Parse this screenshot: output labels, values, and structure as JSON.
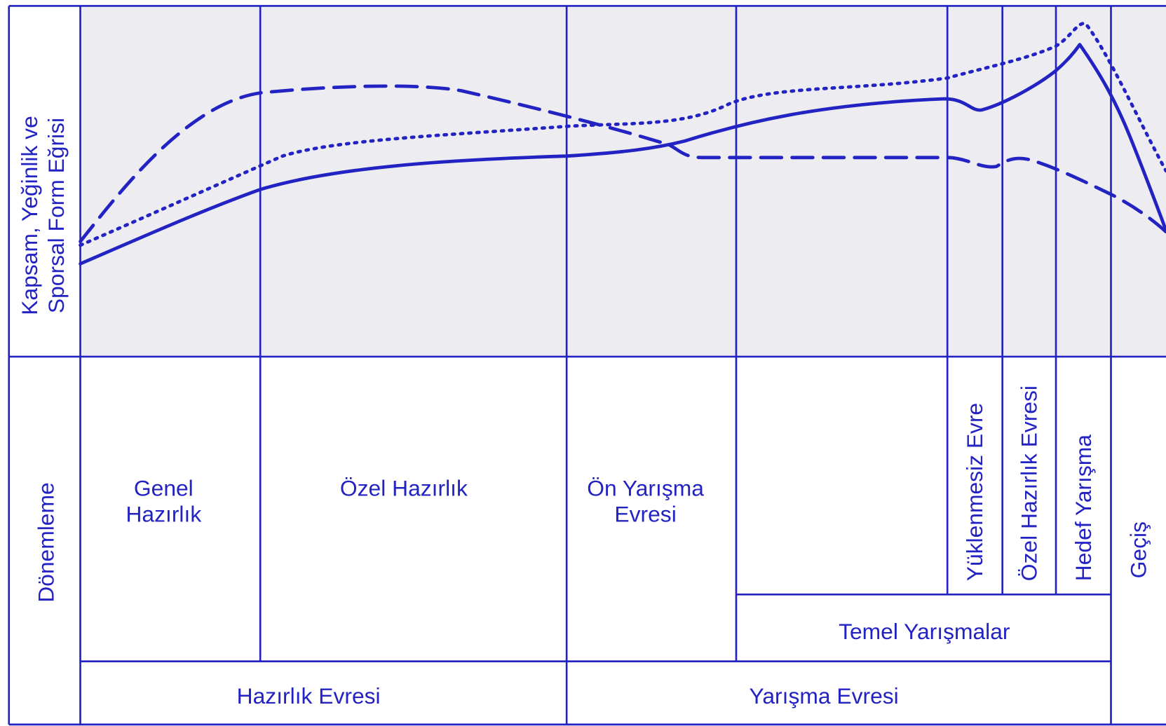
{
  "y_axis_label": [
    "Kapsam, Yeğinlik ve",
    "Sporsal Form Eğrisi"
  ],
  "periodization_label": "Dönemleme",
  "sub_periods": {
    "general_preparation": [
      "Genel",
      "Hazırlık"
    ],
    "special_preparation": "Özel Hazırlık",
    "pre_competition": [
      "Ön Yarışma",
      "Evresi"
    ],
    "unloading": "Yüklenmesiz Evre",
    "special_preparation_phase": "Özel Hazırlık Evresi",
    "target_competition": "Hedef Yarışma",
    "transition": "Geçiş",
    "main_competitions": "Temel Yarışmalar"
  },
  "phases": {
    "preparation": "Hazırlık Evresi",
    "competition": "Yarışma Evresi"
  }
}
